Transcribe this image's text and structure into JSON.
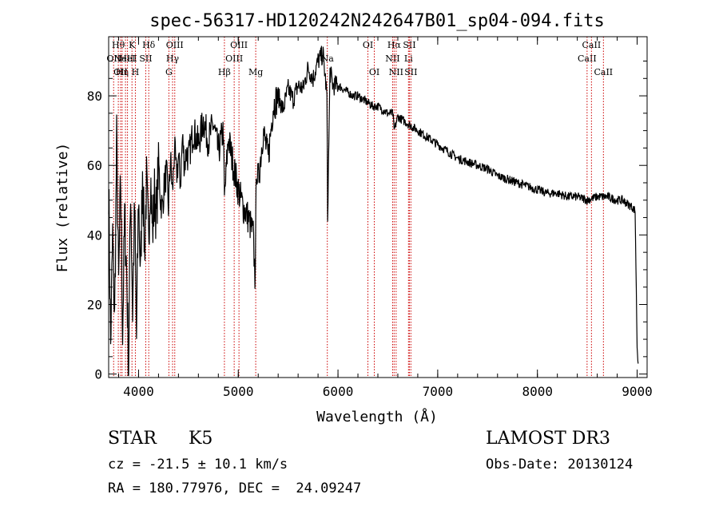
{
  "chart_data": {
    "type": "line",
    "title": "spec-56317-HD120242N242647B01_sp04-094.fits",
    "xlabel": "Wavelength (Å)",
    "ylabel": "Flux (relative)",
    "xlim": [
      3700,
      9100
    ],
    "ylim": [
      -1,
      97
    ],
    "x_ticks": [
      4000,
      5000,
      6000,
      7000,
      8000,
      9000
    ],
    "y_ticks": [
      0,
      20,
      40,
      60,
      80
    ],
    "grid": false,
    "line_color": "#000000",
    "marker_color": "#cc0000",
    "series": [
      {
        "x": [
          3700,
          3720,
          3740,
          3760,
          3780,
          3800,
          3820,
          3840,
          3860,
          3880,
          3900,
          3920,
          3940,
          3960,
          3980,
          4000,
          4020,
          4040,
          4060,
          4080,
          4100,
          4120,
          4140,
          4160,
          4180,
          4200,
          4220,
          4240,
          4260,
          4280,
          4300,
          4320,
          4340,
          4360,
          4380,
          4400,
          4420,
          4440,
          4460,
          4480,
          4500,
          4550,
          4600,
          4650,
          4700,
          4750,
          4800,
          4850,
          4861,
          4900,
          4950,
          5000,
          5050,
          5100,
          5150,
          5167,
          5172,
          5183,
          5200,
          5250,
          5300,
          5350,
          5400,
          5450,
          5500,
          5550,
          5600,
          5650,
          5700,
          5750,
          5800,
          5850,
          5889,
          5896,
          5920,
          5950,
          6000,
          6050,
          6100,
          6150,
          6200,
          6250,
          6300,
          6350,
          6400,
          6450,
          6500,
          6550,
          6563,
          6600,
          6650,
          6700,
          6750,
          6800,
          6850,
          6900,
          6950,
          7000,
          7100,
          7200,
          7300,
          7400,
          7500,
          7600,
          7700,
          7800,
          7900,
          8000,
          8100,
          8200,
          8300,
          8400,
          8500,
          8600,
          8700,
          8800,
          8850,
          8900,
          8950,
          8980,
          9000,
          9010
        ],
        "y": [
          55,
          8,
          40,
          15,
          67,
          25,
          56,
          12,
          45,
          30,
          2,
          55,
          18,
          48,
          10,
          52,
          28,
          60,
          35,
          55,
          38,
          58,
          40,
          52,
          45,
          62,
          50,
          48,
          55,
          58,
          48,
          62,
          52,
          65,
          57,
          62,
          55,
          68,
          60,
          64,
          62,
          70,
          66,
          73,
          67,
          72,
          64,
          70,
          50,
          68,
          60,
          53,
          48,
          45,
          40,
          28,
          35,
          60,
          55,
          70,
          62,
          77,
          80,
          76,
          82,
          79,
          83,
          82,
          88,
          85,
          90,
          92,
          80,
          45,
          87,
          83,
          83,
          82,
          81,
          80,
          80,
          79,
          78,
          77,
          77,
          76,
          75,
          75,
          70,
          74,
          73,
          72,
          71,
          70,
          69,
          68,
          67,
          66,
          64,
          62,
          61,
          60,
          59,
          57,
          56,
          55,
          54,
          53,
          52,
          52,
          51,
          51,
          50,
          51,
          51,
          50,
          50,
          49,
          48,
          47,
          8,
          3
        ]
      }
    ],
    "lines": [
      {
        "wl": 3750,
        "label": "OII",
        "row": 1
      },
      {
        "wl": 3797,
        "label": "Hθ",
        "row": 0
      },
      {
        "wl": 3820,
        "label": "OII",
        "row": 2
      },
      {
        "wl": 3835,
        "label": "Hη",
        "row": 2
      },
      {
        "wl": 3869,
        "label": "NeIII",
        "row": 1
      },
      {
        "wl": 3889,
        "label": "HeI",
        "row": 1
      },
      {
        "wl": 3934,
        "label": "K",
        "row": 0
      },
      {
        "wl": 3968,
        "label": "H",
        "row": 2
      },
      {
        "wl": 4072,
        "label": "SII",
        "row": 1
      },
      {
        "wl": 4102,
        "label": "Hδ",
        "row": 0
      },
      {
        "wl": 4304,
        "label": "G",
        "row": 2
      },
      {
        "wl": 4341,
        "label": "Hγ",
        "row": 1
      },
      {
        "wl": 4363,
        "label": "OIII",
        "row": 0
      },
      {
        "wl": 4861,
        "label": "Hβ",
        "row": 2
      },
      {
        "wl": 4959,
        "label": "OIII",
        "row": 1
      },
      {
        "wl": 5007,
        "label": "OIII",
        "row": 0
      },
      {
        "wl": 5175,
        "label": "Mg",
        "row": 2
      },
      {
        "wl": 5893,
        "label": "Na",
        "row": 1
      },
      {
        "wl": 6300,
        "label": "OI",
        "row": 0
      },
      {
        "wl": 6364,
        "label": "OI",
        "row": 2
      },
      {
        "wl": 6548,
        "label": "NII",
        "row": 1
      },
      {
        "wl": 6563,
        "label": "Hα",
        "row": 0
      },
      {
        "wl": 6583,
        "label": "NII",
        "row": 2
      },
      {
        "wl": 6707,
        "label": "Li",
        "row": 1
      },
      {
        "wl": 6716,
        "label": "SII",
        "row": 0
      },
      {
        "wl": 6731,
        "label": "SII",
        "row": 2
      },
      {
        "wl": 8498,
        "label": "CaII",
        "row": 1
      },
      {
        "wl": 8542,
        "label": "CaII",
        "row": 0
      },
      {
        "wl": 8662,
        "label": "CaII",
        "row": 2
      }
    ]
  },
  "info": {
    "class": "STAR",
    "subclass": "K5",
    "survey": "LAMOST DR3",
    "cz": "cz = -21.5 ± 10.1 km/s",
    "obs_date": "Obs-Date: 20130124",
    "radec": "RA = 180.77976, DEC =  24.09247"
  }
}
